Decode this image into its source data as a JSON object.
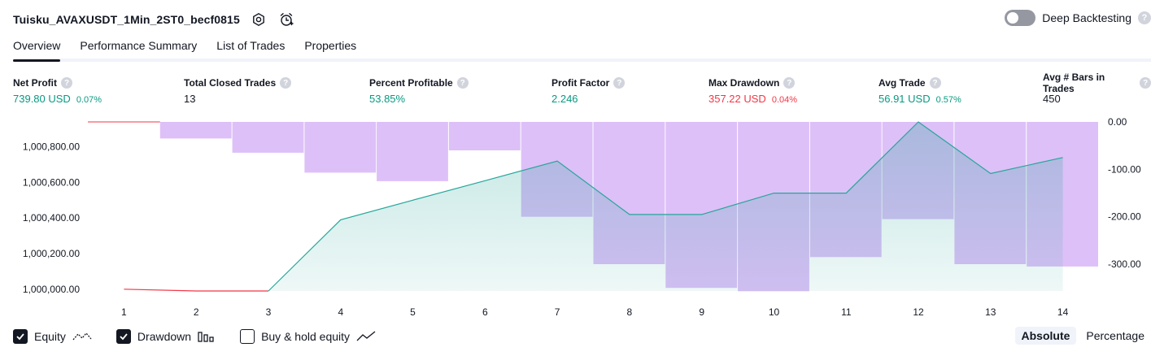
{
  "header": {
    "title": "Tuisku_AVAXUSDT_1Min_2ST0_becf0815",
    "deep_backtesting_label": "Deep Backtesting",
    "help_glyph": "?",
    "icons": [
      "settings-icon",
      "alarm-icon",
      "help-icon"
    ]
  },
  "tabs": [
    {
      "label": "Overview",
      "active": true
    },
    {
      "label": "Performance Summary",
      "active": false
    },
    {
      "label": "List of Trades",
      "active": false
    },
    {
      "label": "Properties",
      "active": false
    }
  ],
  "stats": [
    {
      "label": "Net Profit",
      "value": "739.80 USD",
      "pct": "0.07%",
      "color": "#089981"
    },
    {
      "label": "Total Closed Trades",
      "value": "13",
      "pct": "",
      "color": "#131722"
    },
    {
      "label": "Percent Profitable",
      "value": "53.85%",
      "pct": "",
      "color": "#089981"
    },
    {
      "label": "Profit Factor",
      "value": "2.246",
      "pct": "",
      "color": "#089981"
    },
    {
      "label": "Max Drawdown",
      "value": "357.22 USD",
      "pct": "0.04%",
      "color": "#f23645"
    },
    {
      "label": "Avg Trade",
      "value": "56.91 USD",
      "pct": "0.57%",
      "color": "#089981"
    },
    {
      "label": "Avg # Bars in Trades",
      "value": "450",
      "pct": "",
      "color": "#131722"
    }
  ],
  "colors": {
    "equity_line": "#26a69a",
    "equity_fill": "#26a69a",
    "equity_negative_line": "#f23645",
    "drawdown_fill": "#d7b5f7",
    "text": "#131722",
    "positive": "#089981",
    "negative": "#f23645"
  },
  "chart_data": {
    "type": "area",
    "x": [
      1,
      2,
      3,
      4,
      5,
      6,
      7,
      8,
      9,
      10,
      11,
      12,
      13,
      14
    ],
    "x_ticks": [
      "1",
      "2",
      "3",
      "4",
      "5",
      "6",
      "7",
      "8",
      "9",
      "10",
      "11",
      "12",
      "13",
      "14"
    ],
    "series": [
      {
        "name": "Equity",
        "axis": "left",
        "type": "area",
        "values": [
          1000000,
          999990,
          999990,
          1000390,
          1000500,
          1000610,
          1000720,
          1000420,
          1000420,
          1000540,
          1000540,
          1000940,
          1000650,
          1000740
        ]
      },
      {
        "name": "Drawdown",
        "axis": "right",
        "type": "bar",
        "values": [
          0,
          -35,
          -65,
          -107,
          -125,
          -60,
          -200,
          -300,
          -350,
          -357,
          -285,
          -205,
          -300,
          -305
        ]
      }
    ],
    "left_axis": {
      "ticks": [
        "1,000,000.00",
        "1,000,200.00",
        "1,000,400.00",
        "1,000,600.00",
        "1,000,800.00"
      ],
      "tick_values": [
        1000000,
        1000200,
        1000400,
        1000600,
        1000800
      ],
      "ylim": [
        999990,
        1000940
      ]
    },
    "right_axis": {
      "ticks": [
        "0.00",
        "-100.00",
        "-200.00",
        "-300.00"
      ],
      "tick_values": [
        0,
        -100,
        -200,
        -300
      ],
      "ylim": [
        -360,
        0
      ]
    },
    "grid": false
  },
  "legend": {
    "equity": {
      "label": "Equity",
      "checked": true
    },
    "drawdown": {
      "label": "Drawdown",
      "checked": true
    },
    "buy_hold": {
      "label": "Buy & hold equity",
      "checked": false
    }
  },
  "mode": {
    "absolute_label": "Absolute",
    "percentage_label": "Percentage",
    "selected": "Absolute"
  }
}
